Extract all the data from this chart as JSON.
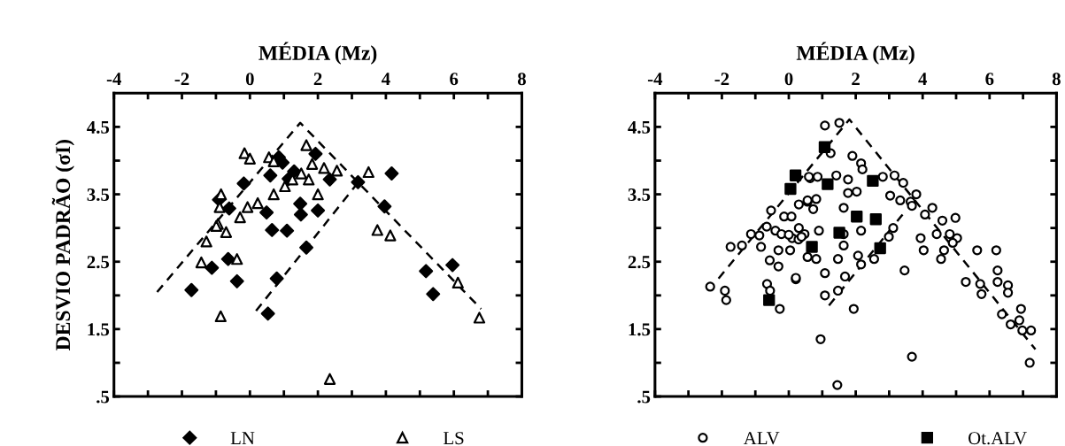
{
  "chart_data": [
    {
      "type": "scatter",
      "xlabel": "MÉDIA (Mz)",
      "ylabel": "DESVIO PADRÃO (σI)",
      "xlim": [
        -4,
        8
      ],
      "ylim": [
        0.5,
        5.0
      ],
      "xticks": [
        -4,
        {
          "value": -3,
          "label": null
        },
        -2,
        {
          "value": -1,
          "label": null
        },
        0,
        {
          "value": 1,
          "label": null
        },
        2,
        {
          "value": 3,
          "label": null
        },
        4,
        {
          "value": 5,
          "label": null
        },
        6,
        {
          "value": 7,
          "label": null
        },
        8
      ],
      "yticks": [
        {
          "value": 0.5,
          "label": ".5"
        },
        {
          "value": 1,
          "label": null
        },
        1.5,
        {
          "value": 2,
          "label": null
        },
        2.5,
        {
          "value": 3,
          "label": null
        },
        3.5,
        {
          "value": 4,
          "label": null
        },
        4.5
      ],
      "grid": false,
      "legend": "bottom",
      "series": [
        {
          "name": "LN",
          "marker": "diamond",
          "color": "#000000",
          "x": [
            4.17,
            3.18,
            3.96,
            2.35,
            1.93,
            0.96,
            1.3,
            0.6,
            1.14,
            0.85,
            -0.18,
            1.48,
            2.0,
            1.5,
            -0.91,
            -0.61,
            0.49,
            0.65,
            1.09,
            1.66,
            0.79,
            0.53,
            -1.72,
            -1.12,
            -0.38,
            -0.64,
            5.18,
            5.96,
            5.39
          ],
          "values": [
            3.81,
            3.68,
            3.32,
            3.72,
            4.1,
            3.97,
            3.84,
            3.78,
            3.73,
            4.05,
            3.66,
            3.36,
            3.26,
            3.2,
            3.42,
            3.29,
            3.23,
            2.97,
            2.96,
            2.71,
            2.25,
            1.73,
            2.08,
            2.41,
            2.21,
            2.54,
            2.36,
            2.45,
            2.02
          ]
        },
        {
          "name": "LS",
          "marker": "triangle",
          "color": "#000000",
          "x": [
            -0.16,
            0.0,
            0.56,
            0.7,
            1.66,
            1.83,
            2.18,
            2.56,
            3.49,
            1.51,
            1.25,
            1.73,
            1.03,
            2.0,
            0.7,
            0.23,
            -0.07,
            -0.29,
            -0.85,
            -0.89,
            -0.94,
            3.75,
            4.13,
            -1.28,
            -0.99,
            -0.7,
            -1.43,
            -0.38,
            -0.86,
            2.35,
            6.12,
            6.75
          ],
          "values": [
            4.11,
            4.03,
            4.05,
            3.99,
            4.23,
            3.95,
            3.89,
            3.85,
            3.83,
            3.81,
            3.72,
            3.72,
            3.62,
            3.5,
            3.5,
            3.37,
            3.31,
            3.16,
            3.5,
            3.31,
            3.06,
            2.97,
            2.89,
            2.8,
            3.03,
            2.94,
            2.49,
            2.54,
            1.69,
            0.76,
            2.19,
            1.67
          ]
        },
        {
          "type": "line",
          "line_style": "dashed",
          "color": "#000000",
          "x": [
            -2.73,
            1.48,
            6.8
          ],
          "values": [
            2.05,
            4.56,
            1.8
          ]
        },
        {
          "type": "line",
          "line_style": "dashed",
          "color": "#000000",
          "x": [
            0.18,
            3.3
          ],
          "values": [
            1.77,
            3.75
          ]
        }
      ]
    },
    {
      "type": "scatter",
      "xlabel": "MÉDIA (Mz)",
      "xlim": [
        -4,
        8
      ],
      "ylim": [
        0.5,
        5.0
      ],
      "xticks": [
        -4,
        {
          "value": -3,
          "label": null
        },
        -2,
        {
          "value": -1,
          "label": null
        },
        0,
        {
          "value": 1,
          "label": null
        },
        2,
        {
          "value": 3,
          "label": null
        },
        4,
        {
          "value": 5,
          "label": null
        },
        6,
        {
          "value": 7,
          "label": null
        },
        8
      ],
      "yticks": [
        {
          "value": 0.5,
          "label": ".5"
        },
        {
          "value": 1,
          "label": null
        },
        1.5,
        {
          "value": 2,
          "label": null
        },
        2.5,
        {
          "value": 3,
          "label": null
        },
        3.5,
        {
          "value": 4,
          "label": null
        },
        4.5
      ],
      "grid": false,
      "legend": "bottom",
      "series": [
        {
          "name": "ALV",
          "marker": "circle",
          "color": "#000000",
          "x": [
            -2.35,
            -1.91,
            -1.87,
            -1.74,
            -1.4,
            -1.13,
            -0.88,
            -0.83,
            -0.57,
            -0.31,
            -0.31,
            0.21,
            -0.65,
            -0.56,
            -0.27,
            -0.66,
            -0.4,
            -0.53,
            -0.14,
            0.08,
            0.3,
            0.56,
            0.64,
            -0.22,
            0.04,
            0.1,
            0.3,
            0.0,
            1.08,
            1.51,
            1.25,
            1.9,
            2.16,
            2.2,
            0.86,
            1.42,
            1.77,
            2.81,
            3.16,
            3.42,
            3.03,
            3.33,
            3.64,
            3.81,
            3.68,
            4.29,
            4.07,
            4.59,
            4.98,
            4.42,
            4.81,
            5.03,
            4.9,
            3.94,
            4.03,
            4.64,
            4.55,
            5.63,
            6.2,
            5.29,
            5.72,
            5.76,
            6.24,
            6.24,
            6.55,
            6.55,
            6.37,
            6.63,
            6.94,
            6.89,
            7.24,
            6.98,
            7.2,
            3.68,
            1.94,
            0.95,
            1.08,
            1.47,
            1.68,
            1.08,
            1.47,
            2.07,
            2.16,
            2.55,
            3.46,
            1.64,
            1.64,
            2.16,
            2.99,
            3.12,
            1.77,
            2.03,
            1.64,
            0.6,
            0.56,
            0.82,
            0.73,
            0.9,
            0.47,
            0.29,
            0.56,
            0.82,
            0.21,
            0.38,
            1.45
          ],
          "values": [
            2.13,
            2.07,
            1.93,
            2.72,
            2.74,
            2.91,
            2.89,
            2.72,
            2.52,
            2.67,
            2.43,
            2.24,
            2.17,
            2.07,
            1.8,
            3.02,
            2.96,
            3.26,
            3.17,
            3.17,
            3.35,
            3.39,
            3.74,
            2.91,
            2.67,
            2.85,
            3.0,
            2.9,
            4.52,
            4.56,
            4.11,
            4.07,
            3.96,
            3.87,
            3.76,
            3.78,
            3.72,
            3.76,
            3.78,
            3.67,
            3.48,
            3.41,
            3.39,
            3.5,
            3.33,
            3.3,
            3.2,
            3.11,
            3.15,
            2.91,
            2.91,
            2.85,
            2.78,
            2.85,
            2.67,
            2.67,
            2.54,
            2.67,
            2.67,
            2.2,
            2.17,
            2.02,
            2.37,
            2.2,
            2.15,
            2.04,
            1.72,
            1.57,
            1.8,
            1.63,
            1.48,
            1.48,
            1.0,
            1.09,
            1.8,
            1.35,
            2.0,
            2.07,
            2.28,
            2.33,
            2.54,
            2.59,
            2.46,
            2.54,
            2.37,
            2.74,
            2.91,
            2.96,
            2.87,
            3.0,
            3.52,
            3.54,
            3.3,
            3.76,
            3.41,
            3.43,
            3.28,
            2.96,
            2.91,
            2.83,
            2.57,
            2.54,
            2.26,
            2.87,
            0.67
          ]
        },
        {
          "name": "Ot.ALV",
          "marker": "square",
          "color": "#000000",
          "x": [
            -0.59,
            0.05,
            0.2,
            0.69,
            1.07,
            1.16,
            1.51,
            2.03,
            2.51,
            2.6,
            2.73
          ],
          "values": [
            1.93,
            3.58,
            3.78,
            2.72,
            4.2,
            3.65,
            2.93,
            3.17,
            3.7,
            3.13,
            2.7
          ]
        },
        {
          "type": "line",
          "line_style": "dashed",
          "color": "#000000",
          "x": [
            -2.1,
            1.81,
            7.37
          ],
          "values": [
            2.25,
            4.61,
            1.2
          ]
        },
        {
          "type": "line",
          "line_style": "dashed",
          "color": "#000000",
          "x": [
            1.2,
            3.4
          ],
          "values": [
            1.85,
            3.2
          ]
        }
      ]
    }
  ]
}
